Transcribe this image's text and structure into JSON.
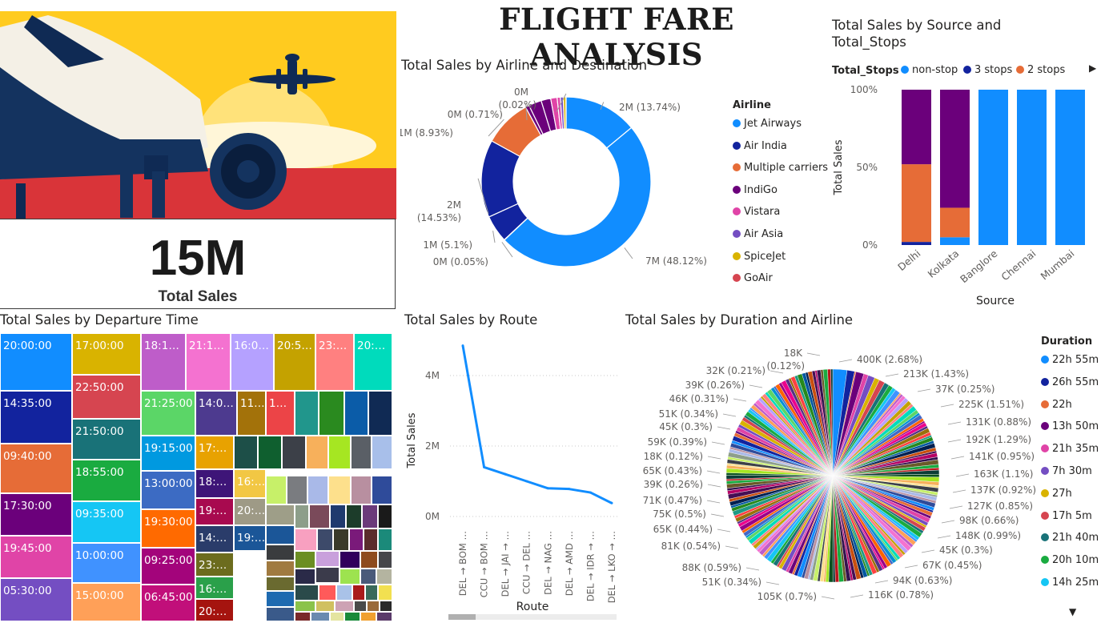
{
  "dashboard": {
    "title": "FLIGHT FARE ANALYSIS",
    "kpi": {
      "value": "15M",
      "label": "Total Sales"
    }
  },
  "colors": {
    "blue": "#118DFF",
    "navy": "#12239E",
    "orange": "#E66C37",
    "purple": "#6B007B",
    "pink": "#E044A7",
    "violet": "#744EC2",
    "gold": "#D9B300",
    "red": "#D64550",
    "teal": "#197278",
    "green": "#1AAB40",
    "cyan": "#15C6F4"
  },
  "chart_data": [
    {
      "id": "donut",
      "type": "pie",
      "title": "Total Sales by Airline and Destination",
      "legend_title": "Airline",
      "legend_position": "right",
      "legend": [
        {
          "name": "Jet Airways",
          "color": "#118DFF"
        },
        {
          "name": "Air India",
          "color": "#12239E"
        },
        {
          "name": "Multiple carriers",
          "color": "#E66C37"
        },
        {
          "name": "IndiGo",
          "color": "#6B007B"
        },
        {
          "name": "Vistara",
          "color": "#E044A7"
        },
        {
          "name": "Air Asia",
          "color": "#744EC2"
        },
        {
          "name": "SpiceJet",
          "color": "#D9B300"
        },
        {
          "name": "GoAir",
          "color": "#D64550"
        }
      ],
      "slices": [
        {
          "airline": "Jet Airways",
          "value": 13.74,
          "label": "2M (13.74%)",
          "color": "#118DFF"
        },
        {
          "airline": "Jet Airways",
          "value": 48.12,
          "label": "7M (48.12%)",
          "color": "#118DFF"
        },
        {
          "airline": "Air India",
          "value": 0.05,
          "label": "0M (0.05%)",
          "color": "#12239E"
        },
        {
          "airline": "Air India",
          "value": 5.1,
          "label": "1M (5.1%)",
          "color": "#12239E"
        },
        {
          "airline": "Air India",
          "value": 14.53,
          "label": "2M (14.53%)",
          "color": "#12239E"
        },
        {
          "airline": "Multiple carriers",
          "value": 8.93,
          "label": "1M (8.93%)",
          "color": "#E66C37"
        },
        {
          "airline": "IndiGo",
          "value": 0.71,
          "label": "0M (0.71%)",
          "color": "#6B007B"
        },
        {
          "airline": "IndiGo",
          "value": 2.4,
          "label": "",
          "color": "#6B007B"
        },
        {
          "airline": "IndiGo",
          "value": 1.8,
          "label": "",
          "color": "#6B007B"
        },
        {
          "airline": "Vistara",
          "value": 1.2,
          "label": "",
          "color": "#E044A7"
        },
        {
          "airline": "Vistara",
          "value": 0.6,
          "label": "",
          "color": "#E044A7"
        },
        {
          "airline": "Air Asia",
          "value": 0.55,
          "label": "",
          "color": "#744EC2"
        },
        {
          "airline": "SpiceJet",
          "value": 0.5,
          "label": "",
          "color": "#D9B300"
        },
        {
          "airline": "GoAir",
          "value": 0.02,
          "label": "0M (0.02%)",
          "color": "#D64550"
        }
      ]
    },
    {
      "id": "stacked",
      "type": "bar",
      "stacked": "100%",
      "title": "Total Sales by Source and Total_Stops",
      "legend_title": "Total_Stops",
      "legend_position": "top",
      "xlabel": "Source",
      "ylabel": "Total Sales",
      "yticks": [
        "0%",
        "50%",
        "100%"
      ],
      "categories": [
        "Delhi",
        "Kolkata",
        "Banglore",
        "Chennai",
        "Mumbai"
      ],
      "series": [
        {
          "name": "non-stop",
          "color": "#118DFF",
          "values": [
            0,
            5,
            100,
            100,
            100
          ]
        },
        {
          "name": "3 stops",
          "color": "#12239E",
          "values": [
            2,
            0,
            0,
            0,
            0
          ]
        },
        {
          "name": "2 stops",
          "color": "#E66C37",
          "values": [
            50,
            19,
            0,
            0,
            0
          ]
        },
        {
          "name": "",
          "color": "#6B007B",
          "values": [
            48,
            76,
            0,
            0,
            0
          ]
        }
      ]
    },
    {
      "id": "treemap",
      "type": "heatmap",
      "title": "Total Sales by Departure Time",
      "labels": [
        "20:00:00",
        "14:35:00",
        "09:40:00",
        "17:30:00",
        "19:45:00",
        "05:30:00",
        "17:00:00",
        "22:50:00",
        "21:50:00",
        "18:55:00",
        "09:35:00",
        "10:00:00",
        "15:00:00",
        "18:1…",
        "21:1…",
        "16:0…",
        "20:5…",
        "23:…",
        "20:…",
        "21:25:00",
        "14:0…",
        "11…",
        "1…",
        "19:15:00",
        "13:00:00",
        "19:30:00",
        "09:25:00",
        "06:45:00",
        "17:…",
        "18:…",
        "16:…",
        "19:…",
        "20:…",
        "14:…",
        "19:…",
        "23:…",
        "16:…",
        "20:…"
      ]
    },
    {
      "id": "line",
      "type": "line",
      "title": "Total Sales by Route",
      "xlabel": "Route",
      "ylabel": "Total Sales",
      "ylim": [
        0,
        5
      ],
      "yticks": [
        "0M",
        "2M",
        "4M"
      ],
      "categories": [
        "DEL → BOM …",
        "CCU → BOM …",
        "DEL → JAI → …",
        "CCU → DEL …",
        "DEL → NAG …",
        "DEL → AMD …",
        "DEL → IDR → …",
        "DEL → LKO → …"
      ],
      "values": [
        4.85,
        1.4,
        1.2,
        1.0,
        0.8,
        0.78,
        0.68,
        0.38
      ],
      "color": "#118DFF"
    },
    {
      "id": "pie",
      "type": "pie",
      "title": "Total Sales by Duration and Airline",
      "legend_title": "Duration",
      "legend_position": "right",
      "legend": [
        {
          "name": "22h 55m",
          "color": "#118DFF"
        },
        {
          "name": "26h 55m",
          "color": "#12239E"
        },
        {
          "name": "22h",
          "color": "#E66C37"
        },
        {
          "name": "13h 50m",
          "color": "#6B007B"
        },
        {
          "name": "21h 35m",
          "color": "#E044A7"
        },
        {
          "name": "7h 30m",
          "color": "#744EC2"
        },
        {
          "name": "27h",
          "color": "#D9B300"
        },
        {
          "name": "17h 5m",
          "color": "#D64550"
        },
        {
          "name": "21h 40m",
          "color": "#197278"
        },
        {
          "name": "20h 10m",
          "color": "#1AAB40"
        },
        {
          "name": "14h 25m",
          "color": "#15C6F4"
        }
      ],
      "labels_right": [
        "400K (2.68%)",
        "213K (1.43%)",
        "37K (0.25%)",
        "225K (1.51%)",
        "131K (0.88%)",
        "192K (1.29%)",
        "141K (0.95%)",
        "163K (1.1%)",
        "137K (0.92%)",
        "127K (0.85%)",
        "98K (0.66%)",
        "148K (0.99%)",
        "45K (0.3%)",
        "67K (0.45%)",
        "94K (0.63%)",
        "116K (0.78%)"
      ],
      "labels_left": [
        "18K (0.12%)",
        "32K (0.21%)",
        "39K (0.26%)",
        "46K (0.31%)",
        "51K (0.34%)",
        "45K (0.3%)",
        "59K (0.39%)",
        "18K (0.12%)",
        "65K (0.43%)",
        "39K (0.26%)",
        "71K (0.47%)",
        "75K (0.5%)",
        "65K (0.44%)",
        "81K (0.54%)",
        "88K (0.59%)",
        "51K (0.34%)",
        "105K (0.7%)"
      ]
    }
  ]
}
